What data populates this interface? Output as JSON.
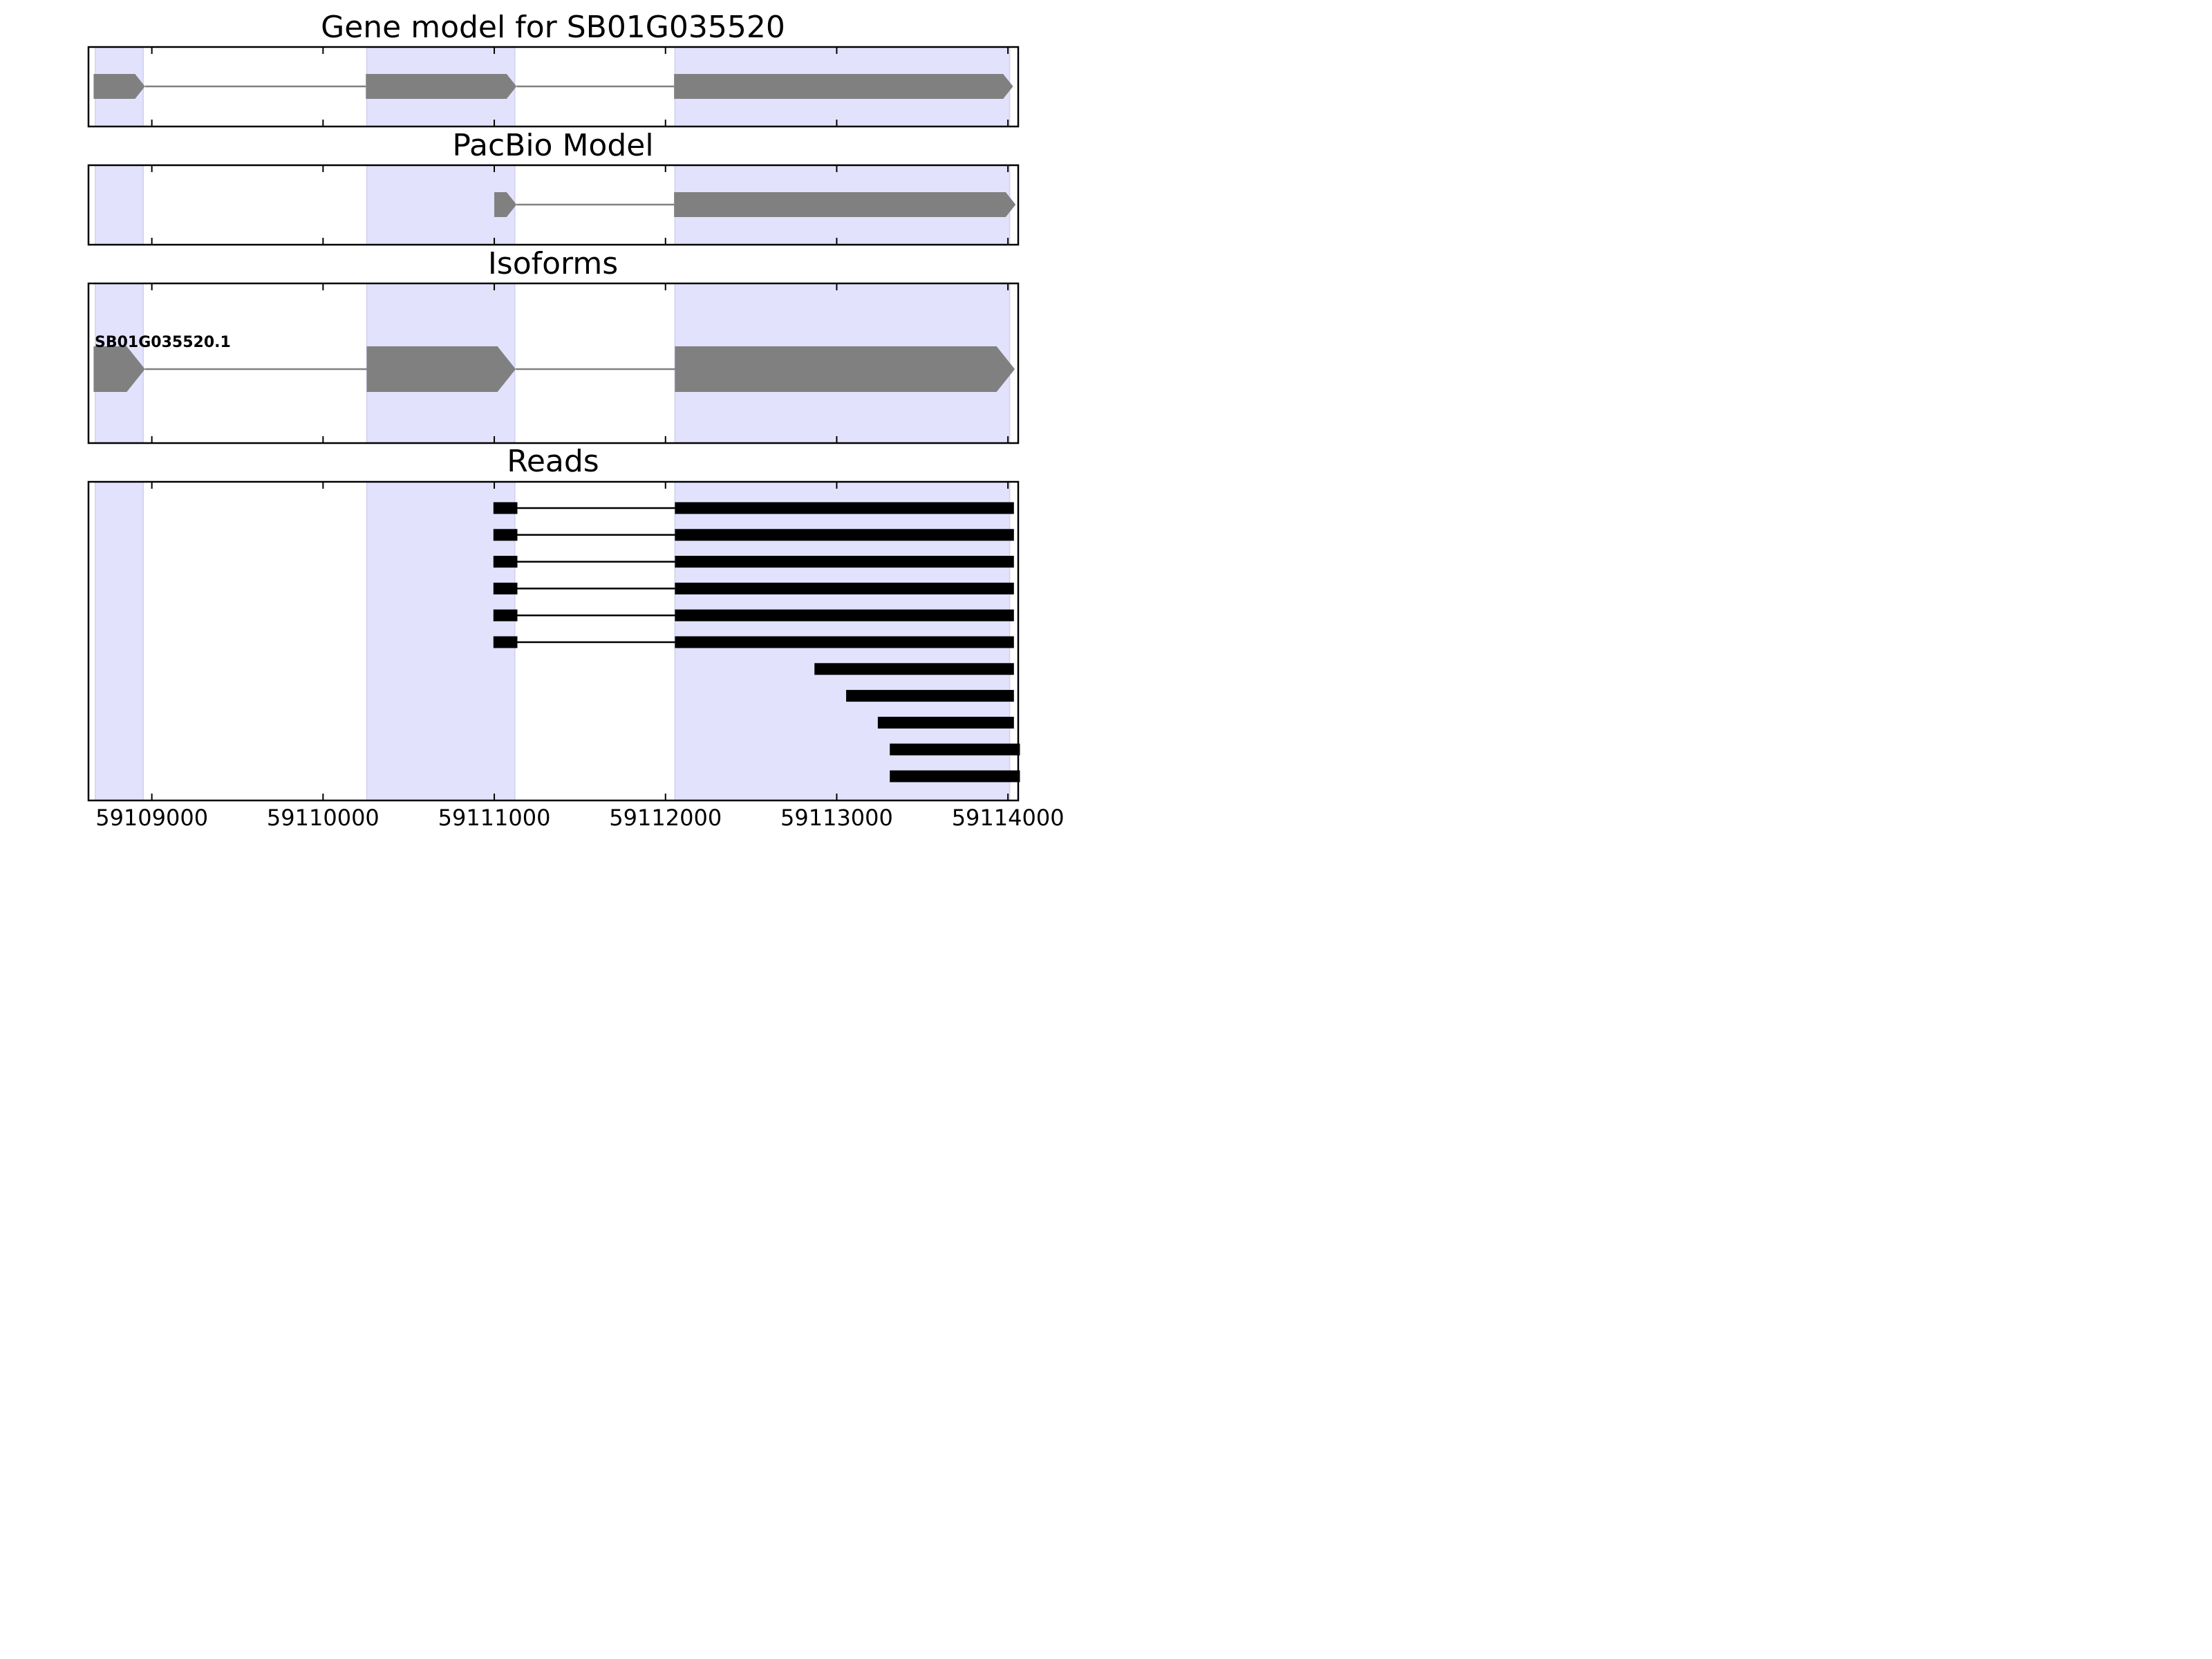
{
  "chart_data": {
    "type": "gene-structure",
    "gene_id": "SB01G035520",
    "x_range": [
      59108630,
      59114060
    ],
    "x_ticks": [
      59109000,
      59110000,
      59111000,
      59112000,
      59113000,
      59114000
    ],
    "x_tick_labels": [
      "59109000",
      "59110000",
      "59111000",
      "59112000",
      "59113000",
      "59114000"
    ],
    "highlight_regions": [
      [
        59108670,
        59108950
      ],
      [
        59110255,
        59111120
      ],
      [
        59112055,
        59114010
      ]
    ],
    "colors": {
      "highlight": "#e2e2fd",
      "highlight_edge": "#cfd0ee",
      "model_exon": "#808080",
      "model_intron": "#808080",
      "read": "#000000",
      "axis": "#000000"
    },
    "panels": [
      {
        "id": "gene-model",
        "title": "Gene model for SB01G035520",
        "strand": "+",
        "exons": [
          [
            59108660,
            59108960
          ],
          [
            59110250,
            59111130
          ],
          [
            59112050,
            59114030
          ]
        ]
      },
      {
        "id": "pacbio-model",
        "title": "PacBio Model",
        "strand": "+",
        "exons": [
          [
            59111000,
            59111130
          ],
          [
            59112050,
            59114045
          ]
        ]
      },
      {
        "id": "isoforms",
        "title": "Isoforms",
        "strand": "+",
        "isoform_label": "SB01G035520.1",
        "exons": [
          [
            59108660,
            59108960
          ],
          [
            59110255,
            59111125
          ],
          [
            59112055,
            59114040
          ]
        ]
      },
      {
        "id": "reads",
        "title": "Reads",
        "reads": [
          [
            [
              59110995,
              59111135
            ],
            [
              59112055,
              59114035
            ]
          ],
          [
            [
              59110995,
              59111135
            ],
            [
              59112055,
              59114035
            ]
          ],
          [
            [
              59110995,
              59111135
            ],
            [
              59112055,
              59114035
            ]
          ],
          [
            [
              59110995,
              59111135
            ],
            [
              59112055,
              59114035
            ]
          ],
          [
            [
              59110995,
              59111135
            ],
            [
              59112055,
              59114035
            ]
          ],
          [
            [
              59110995,
              59111135
            ],
            [
              59112055,
              59114035
            ]
          ],
          [
            [
              59112870,
              59114035
            ]
          ],
          [
            [
              59113055,
              59114035
            ]
          ],
          [
            [
              59113240,
              59114035
            ]
          ],
          [
            [
              59113310,
              59114070
            ]
          ],
          [
            [
              59113310,
              59114070
            ]
          ]
        ]
      }
    ]
  }
}
